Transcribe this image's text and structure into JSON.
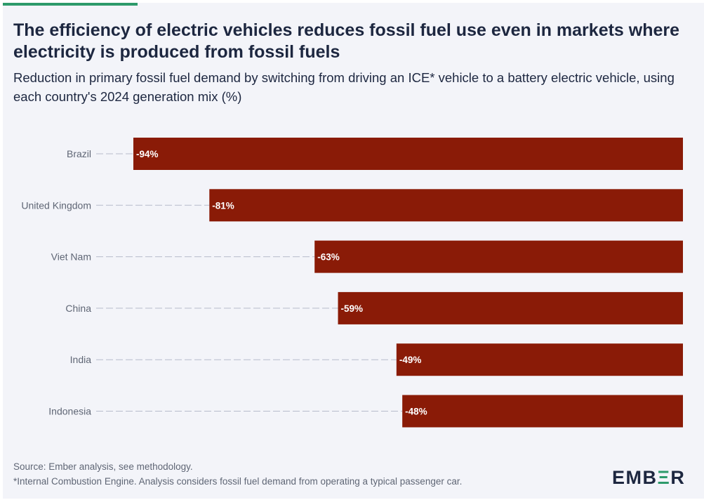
{
  "header": {
    "title": "The efficiency of electric vehicles reduces fossil fuel use even in markets where electricity is produced from fossil fuels",
    "subtitle": "Reduction in primary fossil fuel demand by switching from driving an ICE* vehicle to a battery electric vehicle, using each country's 2024 generation mix (%)"
  },
  "chart_data": {
    "type": "bar",
    "orientation": "horizontal",
    "categories": [
      "Brazil",
      "United Kingdom",
      "Viet Nam",
      "China",
      "India",
      "Indonesia"
    ],
    "values": [
      -94,
      -81,
      -63,
      -59,
      -49,
      -48
    ],
    "data_labels": [
      "-94%",
      "-81%",
      "-63%",
      "-59%",
      "-49%",
      "-48%"
    ],
    "xlim": [
      -100,
      0
    ],
    "grid": false,
    "bar_color": "#8a1b07"
  },
  "footer": {
    "source": "Source: Ember analysis, see methodology.",
    "note": "*Internal Combustion Engine. Analysis considers fossil fuel demand from operating a typical passenger car.",
    "logo_left": "EMB",
    "logo_mark": "Ξ",
    "logo_right": "R"
  }
}
